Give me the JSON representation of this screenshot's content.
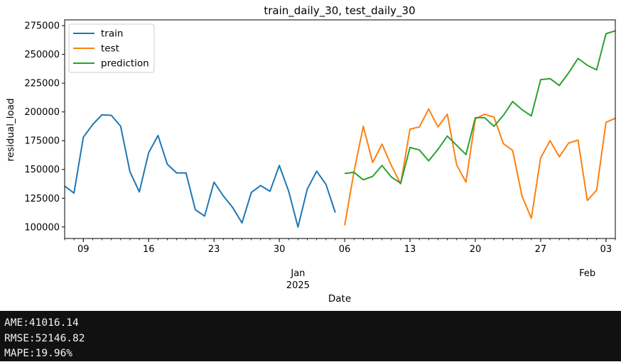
{
  "chart_data": {
    "type": "line",
    "title": "train_daily_30, test_daily_30",
    "xlabel": "Date",
    "ylabel": "residual_load",
    "x_start": "2024-12-07",
    "x_end": "2025-02-04",
    "ylim": [
      90000,
      280000
    ],
    "yticks": [
      100000,
      125000,
      150000,
      175000,
      200000,
      225000,
      250000,
      275000
    ],
    "xticks": [
      {
        "date": "2024-12-09",
        "label": "09"
      },
      {
        "date": "2024-12-16",
        "label": "16"
      },
      {
        "date": "2024-12-23",
        "label": "23"
      },
      {
        "date": "2024-12-30",
        "label": "30"
      },
      {
        "date": "2025-01-06",
        "label": "06"
      },
      {
        "date": "2025-01-13",
        "label": "13"
      },
      {
        "date": "2025-01-20",
        "label": "20"
      },
      {
        "date": "2025-01-27",
        "label": "27"
      },
      {
        "date": "2025-02-03",
        "label": "03"
      }
    ],
    "secondary_labels": [
      {
        "date": "2025-01-01",
        "label": "Jan",
        "sublabel": "2025"
      },
      {
        "date": "2025-02-01",
        "label": "Feb"
      }
    ],
    "grid": false,
    "legend": "top-left",
    "series": [
      {
        "name": "train",
        "color": "#1f77b4",
        "x": [
          "2024-12-07",
          "2024-12-08",
          "2024-12-09",
          "2024-12-10",
          "2024-12-11",
          "2024-12-12",
          "2024-12-13",
          "2024-12-14",
          "2024-12-15",
          "2024-12-16",
          "2024-12-17",
          "2024-12-18",
          "2024-12-19",
          "2024-12-20",
          "2024-12-21",
          "2024-12-22",
          "2024-12-23",
          "2024-12-24",
          "2024-12-25",
          "2024-12-26",
          "2024-12-27",
          "2024-12-28",
          "2024-12-29",
          "2024-12-30",
          "2024-12-31",
          "2025-01-01",
          "2025-01-02",
          "2025-01-03",
          "2025-01-04",
          "2025-01-05"
        ],
        "values": [
          135500,
          129500,
          178000,
          189000,
          197500,
          197000,
          187500,
          148000,
          130500,
          164500,
          179500,
          154500,
          147000,
          147000,
          115000,
          109500,
          139000,
          127000,
          117000,
          103500,
          130000,
          136000,
          131000,
          153500,
          131000,
          100000,
          133000,
          148500,
          137000,
          112500
        ]
      },
      {
        "name": "test",
        "color": "#ff7f0e",
        "x": [
          "2025-01-06",
          "2025-01-07",
          "2025-01-08",
          "2025-01-09",
          "2025-01-10",
          "2025-01-11",
          "2025-01-12",
          "2025-01-13",
          "2025-01-14",
          "2025-01-15",
          "2025-01-16",
          "2025-01-17",
          "2025-01-18",
          "2025-01-19",
          "2025-01-20",
          "2025-01-21",
          "2025-01-22",
          "2025-01-23",
          "2025-01-24",
          "2025-01-25",
          "2025-01-26",
          "2025-01-27",
          "2025-01-28",
          "2025-01-29",
          "2025-01-30",
          "2025-01-31",
          "2025-02-01",
          "2025-02-02",
          "2025-02-03",
          "2025-02-04"
        ],
        "values": [
          101500,
          148000,
          187500,
          156000,
          172000,
          153500,
          137500,
          185000,
          187000,
          202500,
          187000,
          198000,
          154000,
          139000,
          194000,
          198000,
          195500,
          172500,
          166500,
          127000,
          107500,
          160000,
          175000,
          161000,
          173000,
          175500,
          123000,
          132000,
          191000,
          194500
        ]
      },
      {
        "name": "prediction",
        "color": "#2ca02c",
        "x": [
          "2025-01-06",
          "2025-01-07",
          "2025-01-08",
          "2025-01-09",
          "2025-01-10",
          "2025-01-11",
          "2025-01-12",
          "2025-01-13",
          "2025-01-14",
          "2025-01-15",
          "2025-01-16",
          "2025-01-17",
          "2025-01-18",
          "2025-01-19",
          "2025-01-20",
          "2025-01-21",
          "2025-01-22",
          "2025-01-23",
          "2025-01-24",
          "2025-01-25",
          "2025-01-26",
          "2025-01-27",
          "2025-01-28",
          "2025-01-29",
          "2025-01-30",
          "2025-01-31",
          "2025-02-01",
          "2025-02-02",
          "2025-02-03",
          "2025-02-04"
        ],
        "values": [
          146500,
          147500,
          141000,
          144000,
          153500,
          143500,
          138000,
          169000,
          167000,
          157500,
          167500,
          179000,
          171000,
          163000,
          195000,
          195000,
          187500,
          197000,
          209000,
          202000,
          196500,
          228000,
          229000,
          223000,
          234000,
          246500,
          240500,
          236500,
          268000,
          270500
        ]
      }
    ]
  },
  "metrics": {
    "ame": "AME:41016.14",
    "rmse": "RMSE:52146.82",
    "mape": "MAPE:19.96%"
  }
}
